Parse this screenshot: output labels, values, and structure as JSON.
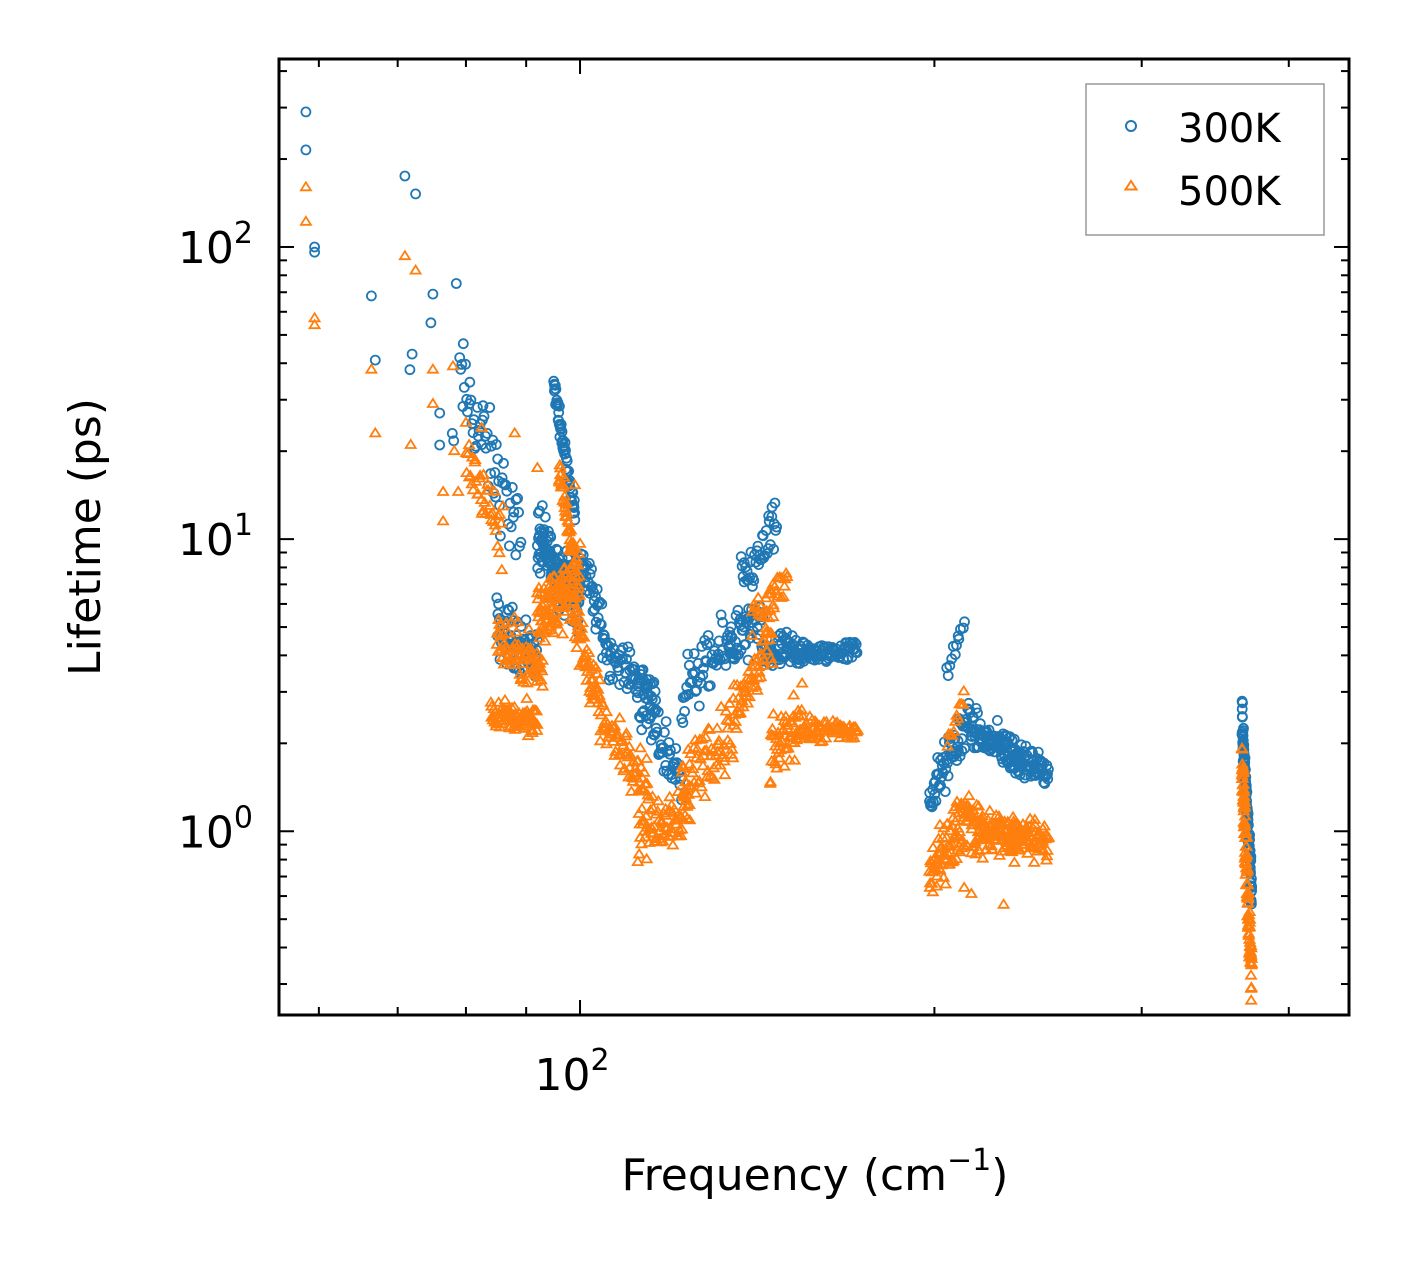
{
  "chart_data": {
    "type": "scatter",
    "xscale": "log",
    "yscale": "log",
    "xlim": [
      55.5,
      450
    ],
    "ylim": [
      0.235,
      440
    ],
    "xlabel": {
      "base": "Frequency (cm",
      "exponent": "−1",
      "close": ")"
    },
    "ylabel": "Lifetime (ps)",
    "x_ticks": [
      {
        "base": "10",
        "exp": "2",
        "value": 100
      }
    ],
    "y_ticks": [
      {
        "base": "10",
        "exp": "0",
        "value": 1
      },
      {
        "base": "10",
        "exp": "1",
        "value": 10
      },
      {
        "base": "10",
        "exp": "2",
        "value": 100
      }
    ],
    "legend": {
      "position": "top-right"
    },
    "series": [
      {
        "name": "300K",
        "marker": "circle",
        "color": "#1f77b4",
        "points": [
          [
            58.5,
            290
          ],
          [
            58.5,
            215
          ],
          [
            59.5,
            100
          ],
          [
            59.5,
            96
          ],
          [
            66.5,
            68
          ],
          [
            67,
            41
          ],
          [
            71,
            175
          ],
          [
            72.5,
            152
          ],
          [
            72,
            43
          ],
          [
            71.7,
            38
          ],
          [
            75,
            69
          ],
          [
            74.7,
            55
          ],
          [
            76,
            27
          ],
          [
            76,
            21
          ],
          [
            78.5,
            75
          ],
          [
            77.9,
            23
          ],
          [
            78.1,
            21.7
          ]
        ],
        "segments": [
          [
            79,
            89,
            36,
            10,
            60,
            0.45
          ],
          [
            85,
            92,
            5,
            4,
            70,
            0.3
          ],
          [
            92,
            100,
            10,
            6,
            140,
            0.35
          ],
          [
            95,
            99,
            34,
            12,
            60,
            0.12
          ],
          [
            100,
            106,
            9,
            4,
            50,
            0.25
          ],
          [
            106,
            116,
            4,
            3,
            60,
            0.2
          ],
          [
            112,
            122,
            2.8,
            1.5,
            60,
            0.3
          ],
          [
            122,
            135,
            3.0,
            4.5,
            60,
            0.3
          ],
          [
            134,
            143,
            4.5,
            5.0,
            50,
            0.3
          ],
          [
            137,
            147,
            7.0,
            11.0,
            40,
            0.25
          ],
          [
            143,
            155,
            4.0,
            4.2,
            70,
            0.2
          ],
          [
            155,
            172,
            4.0,
            4.2,
            70,
            0.1
          ],
          [
            198,
            215,
            1.3,
            2.5,
            70,
            0.25
          ],
          [
            215,
            236,
            2.2,
            1.8,
            100,
            0.2
          ],
          [
            232,
            250,
            1.8,
            1.6,
            70,
            0.15
          ],
          [
            205,
            212,
            3.5,
            5.2,
            12,
            0.1
          ],
          [
            365,
            372,
            2.5,
            0.6,
            110,
            0.25
          ]
        ]
      },
      {
        "name": "500K",
        "marker": "triangle",
        "color": "#ff7f0e",
        "points": [
          [
            58.5,
            160
          ],
          [
            58.5,
            122
          ],
          [
            59.5,
            57
          ],
          [
            59.5,
            54
          ],
          [
            66.5,
            38
          ],
          [
            67,
            23
          ],
          [
            71,
            93
          ],
          [
            72.5,
            83
          ],
          [
            71.8,
            21
          ],
          [
            75,
            38
          ],
          [
            75,
            29
          ],
          [
            76.5,
            14.5
          ],
          [
            76.5,
            11.5
          ],
          [
            78,
            39
          ],
          [
            78.2,
            20
          ],
          [
            80,
            25
          ],
          [
            78.8,
            14.5
          ],
          [
            82.5,
            24
          ],
          [
            88,
            23
          ],
          [
            92,
            17.5
          ],
          [
            99,
            15.3
          ],
          [
            212,
            0.64
          ],
          [
            215,
            0.61
          ],
          [
            229,
            0.56
          ]
        ],
        "segments": [
          [
            80,
            86,
            19,
            10,
            40,
            0.35
          ],
          [
            84,
            92,
            2.5,
            2.4,
            90,
            0.15
          ],
          [
            85,
            93,
            4.5,
            3.5,
            80,
            0.3
          ],
          [
            92,
            100,
            5.5,
            7.0,
            130,
            0.35
          ],
          [
            96,
            99,
            18,
            8,
            45,
            0.15
          ],
          [
            99,
            104,
            5,
            2.8,
            55,
            0.3
          ],
          [
            104,
            114,
            2.4,
            1.5,
            70,
            0.25
          ],
          [
            112,
            124,
            1.0,
            1.2,
            80,
            0.3
          ],
          [
            122,
            135,
            1.5,
            2.2,
            70,
            0.35
          ],
          [
            135,
            146,
            2.5,
            4.5,
            60,
            0.3
          ],
          [
            140,
            150,
            5.5,
            7.0,
            35,
            0.2
          ],
          [
            145,
            155,
            1.8,
            2.5,
            60,
            0.3
          ],
          [
            155,
            172,
            2.2,
            2.2,
            70,
            0.12
          ],
          [
            198,
            215,
            0.7,
            1.2,
            90,
            0.3
          ],
          [
            215,
            236,
            1.0,
            0.95,
            110,
            0.25
          ],
          [
            232,
            250,
            0.95,
            0.95,
            70,
            0.2
          ],
          [
            205,
            212,
            2.0,
            2.8,
            12,
            0.15
          ],
          [
            365,
            372,
            1.7,
            0.3,
            120,
            0.3
          ]
        ]
      }
    ]
  }
}
